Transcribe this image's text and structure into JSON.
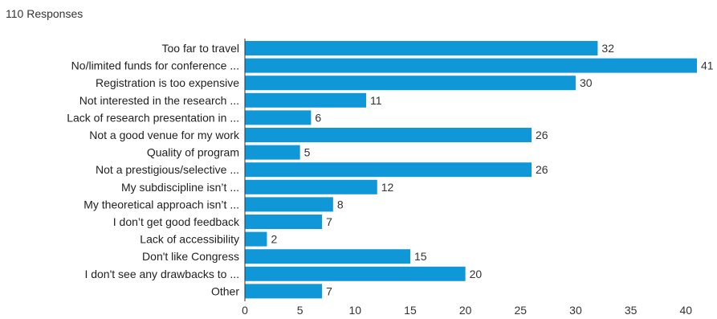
{
  "header": {
    "responses": "110 Responses"
  },
  "chart_data": {
    "type": "bar",
    "orientation": "horizontal",
    "categories": [
      "Too far to travel",
      "No/limited funds for conference ...",
      "Registration is too expensive",
      "Not interested in the research ...",
      "Lack of research presentation in ...",
      "Not a good venue for my work",
      "Quality of program",
      "Not a prestigious/selective ...",
      "My subdiscipline isn’t ...",
      "My theoretical approach isn’t ...",
      "I don’t get good feedback",
      "Lack of accessibility",
      "Don't like Congress",
      "I don't see any drawbacks to ...",
      "Other"
    ],
    "values": [
      32,
      41,
      30,
      11,
      6,
      26,
      5,
      26,
      12,
      8,
      7,
      2,
      15,
      20,
      7
    ],
    "xlim": [
      0,
      41
    ],
    "xticks": [
      0,
      5,
      10,
      15,
      20,
      25,
      30,
      35,
      40
    ],
    "bar_color": "#0f97d8",
    "grid": false
  }
}
